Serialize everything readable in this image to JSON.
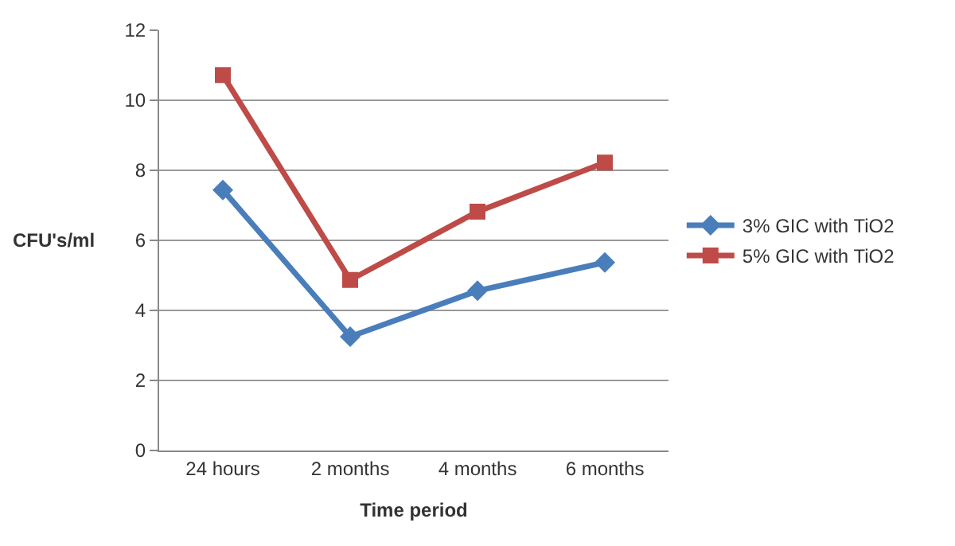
{
  "chart_data": {
    "type": "line",
    "xlabel": "Time period",
    "ylabel": "CFU's/ml",
    "categories": [
      "24 hours",
      "2 months",
      "4 months",
      "6 months"
    ],
    "series": [
      {
        "name": "3% GIC with TiO2",
        "color": "#4a7ebb",
        "marker": "diamond",
        "values": [
          7.44,
          3.25,
          4.56,
          5.37
        ]
      },
      {
        "name": "5% GIC with TiO2",
        "color": "#be4b48",
        "marker": "square",
        "values": [
          10.72,
          4.87,
          6.82,
          8.22
        ]
      }
    ],
    "ylim": [
      0,
      12
    ],
    "yticks": [
      0,
      2,
      4,
      6,
      8,
      10,
      12
    ],
    "grid": "y",
    "legend": "right"
  }
}
